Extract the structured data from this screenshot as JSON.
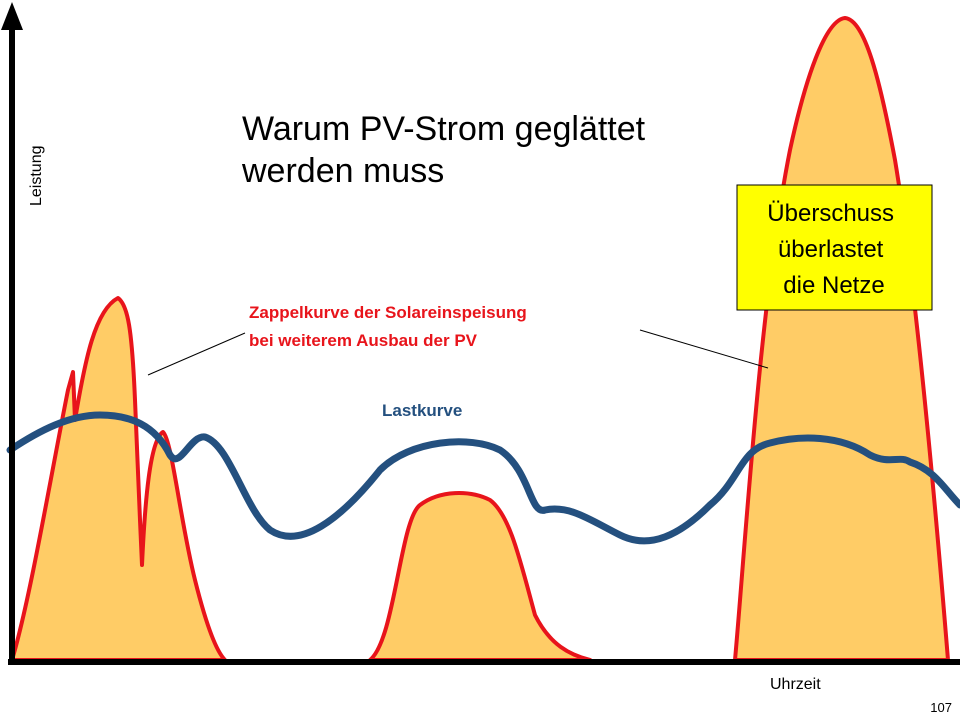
{
  "title": [
    "Warum PV-Strom geglättet",
    "werden muss"
  ],
  "y_axis_label": "Leistung",
  "x_axis_label": "Uhrzeit",
  "solar_annotation": [
    "Zappelkurve der Solareinspeisung",
    "bei weiterem Ausbau der PV"
  ],
  "load_label": "Lastkurve",
  "callout": [
    "Überschuss",
    "überlastet",
    "die Netze"
  ],
  "page_number": "107"
}
